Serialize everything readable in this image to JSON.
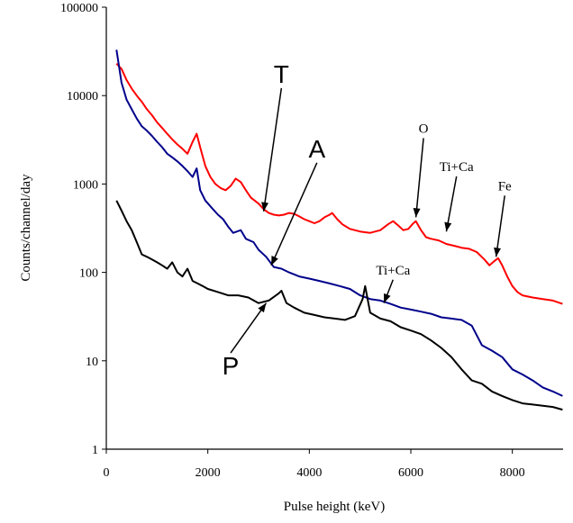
{
  "chart_data": {
    "type": "line",
    "title": "",
    "xlabel": "Pulse height (keV)",
    "ylabel": "Counts/channel/day",
    "xlim": [
      0,
      9000
    ],
    "ylim": [
      1,
      100000
    ],
    "yscale": "log",
    "grid": false,
    "legend": "none",
    "x_ticks": [
      "0",
      "2000",
      "4000",
      "6000",
      "8000"
    ],
    "x_tick_values": [
      0,
      2000,
      4000,
      6000,
      8000
    ],
    "y_ticks": [
      "1",
      "10",
      "100",
      "1000",
      "10000",
      "100000"
    ],
    "y_tick_values": [
      1,
      10,
      100,
      1000,
      10000,
      100000
    ],
    "series": [
      {
        "color": "#ff0000",
        "points": [
          [
            200,
            23000
          ],
          [
            300,
            20000
          ],
          [
            400,
            15000
          ],
          [
            500,
            12000
          ],
          [
            600,
            10000
          ],
          [
            700,
            8500
          ],
          [
            800,
            7000
          ],
          [
            900,
            6000
          ],
          [
            1000,
            5000
          ],
          [
            1100,
            4300
          ],
          [
            1200,
            3700
          ],
          [
            1300,
            3200
          ],
          [
            1400,
            2800
          ],
          [
            1500,
            2500
          ],
          [
            1600,
            2200
          ],
          [
            1700,
            3000
          ],
          [
            1780,
            3700
          ],
          [
            1850,
            2600
          ],
          [
            1950,
            1600
          ],
          [
            2050,
            1200
          ],
          [
            2150,
            1000
          ],
          [
            2250,
            900
          ],
          [
            2350,
            850
          ],
          [
            2450,
            950
          ],
          [
            2550,
            1150
          ],
          [
            2650,
            1050
          ],
          [
            2750,
            850
          ],
          [
            2850,
            700
          ],
          [
            3000,
            600
          ],
          [
            3100,
            520
          ],
          [
            3200,
            470
          ],
          [
            3300,
            450
          ],
          [
            3400,
            440
          ],
          [
            3500,
            450
          ],
          [
            3600,
            470
          ],
          [
            3700,
            460
          ],
          [
            3800,
            430
          ],
          [
            3900,
            400
          ],
          [
            4000,
            380
          ],
          [
            4100,
            360
          ],
          [
            4200,
            380
          ],
          [
            4300,
            420
          ],
          [
            4400,
            450
          ],
          [
            4450,
            470
          ],
          [
            4550,
            400
          ],
          [
            4650,
            350
          ],
          [
            4800,
            310
          ],
          [
            5000,
            290
          ],
          [
            5200,
            280
          ],
          [
            5400,
            300
          ],
          [
            5550,
            350
          ],
          [
            5650,
            380
          ],
          [
            5750,
            340
          ],
          [
            5850,
            300
          ],
          [
            5950,
            310
          ],
          [
            6050,
            360
          ],
          [
            6100,
            380
          ],
          [
            6200,
            300
          ],
          [
            6300,
            250
          ],
          [
            6400,
            240
          ],
          [
            6550,
            230
          ],
          [
            6700,
            210
          ],
          [
            6850,
            200
          ],
          [
            7000,
            190
          ],
          [
            7150,
            185
          ],
          [
            7300,
            170
          ],
          [
            7450,
            140
          ],
          [
            7550,
            120
          ],
          [
            7650,
            135
          ],
          [
            7720,
            145
          ],
          [
            7800,
            120
          ],
          [
            7900,
            90
          ],
          [
            8000,
            70
          ],
          [
            8100,
            60
          ],
          [
            8200,
            55
          ],
          [
            8400,
            52
          ],
          [
            8600,
            50
          ],
          [
            8800,
            48
          ],
          [
            8990,
            44
          ]
        ]
      },
      {
        "color": "#00008b",
        "points": [
          [
            200,
            33000
          ],
          [
            300,
            14000
          ],
          [
            400,
            9000
          ],
          [
            500,
            7000
          ],
          [
            600,
            5500
          ],
          [
            700,
            4500
          ],
          [
            800,
            4000
          ],
          [
            900,
            3500
          ],
          [
            1000,
            3000
          ],
          [
            1100,
            2600
          ],
          [
            1200,
            2200
          ],
          [
            1300,
            2000
          ],
          [
            1400,
            1800
          ],
          [
            1500,
            1600
          ],
          [
            1600,
            1400
          ],
          [
            1700,
            1200
          ],
          [
            1780,
            1500
          ],
          [
            1850,
            850
          ],
          [
            1950,
            650
          ],
          [
            2100,
            520
          ],
          [
            2200,
            450
          ],
          [
            2300,
            400
          ],
          [
            2400,
            330
          ],
          [
            2500,
            280
          ],
          [
            2650,
            300
          ],
          [
            2750,
            240
          ],
          [
            2900,
            220
          ],
          [
            3000,
            180
          ],
          [
            3150,
            150
          ],
          [
            3300,
            115
          ],
          [
            3450,
            110
          ],
          [
            3600,
            100
          ],
          [
            3800,
            90
          ],
          [
            4000,
            85
          ],
          [
            4200,
            80
          ],
          [
            4400,
            75
          ],
          [
            4600,
            70
          ],
          [
            4800,
            65
          ],
          [
            5000,
            55
          ],
          [
            5200,
            50
          ],
          [
            5400,
            48
          ],
          [
            5600,
            44
          ],
          [
            5800,
            40
          ],
          [
            6000,
            38
          ],
          [
            6200,
            36
          ],
          [
            6400,
            34
          ],
          [
            6600,
            31
          ],
          [
            6800,
            30
          ],
          [
            7000,
            29
          ],
          [
            7200,
            25
          ],
          [
            7400,
            15
          ],
          [
            7600,
            13
          ],
          [
            7800,
            11
          ],
          [
            8000,
            8
          ],
          [
            8200,
            7
          ],
          [
            8400,
            6
          ],
          [
            8600,
            5
          ],
          [
            8800,
            4.5
          ],
          [
            8990,
            4
          ]
        ]
      },
      {
        "color": "#000000",
        "points": [
          [
            200,
            650
          ],
          [
            300,
            500
          ],
          [
            400,
            380
          ],
          [
            500,
            300
          ],
          [
            600,
            220
          ],
          [
            700,
            160
          ],
          [
            800,
            150
          ],
          [
            900,
            140
          ],
          [
            1000,
            130
          ],
          [
            1100,
            120
          ],
          [
            1200,
            110
          ],
          [
            1300,
            130
          ],
          [
            1400,
            100
          ],
          [
            1500,
            90
          ],
          [
            1600,
            110
          ],
          [
            1700,
            80
          ],
          [
            1800,
            75
          ],
          [
            1900,
            70
          ],
          [
            2000,
            65
          ],
          [
            2200,
            60
          ],
          [
            2400,
            55
          ],
          [
            2600,
            55
          ],
          [
            2800,
            52
          ],
          [
            3000,
            45
          ],
          [
            3200,
            48
          ],
          [
            3400,
            58
          ],
          [
            3450,
            62
          ],
          [
            3550,
            45
          ],
          [
            3700,
            40
          ],
          [
            3900,
            35
          ],
          [
            4100,
            33
          ],
          [
            4300,
            31
          ],
          [
            4500,
            30
          ],
          [
            4700,
            29
          ],
          [
            4900,
            32
          ],
          [
            5050,
            50
          ],
          [
            5100,
            70
          ],
          [
            5200,
            35
          ],
          [
            5400,
            30
          ],
          [
            5600,
            28
          ],
          [
            5800,
            24
          ],
          [
            6000,
            22
          ],
          [
            6200,
            20
          ],
          [
            6400,
            17
          ],
          [
            6600,
            14
          ],
          [
            6800,
            11
          ],
          [
            7000,
            8
          ],
          [
            7200,
            6
          ],
          [
            7400,
            5.5
          ],
          [
            7600,
            4.5
          ],
          [
            7800,
            4
          ],
          [
            8000,
            3.6
          ],
          [
            8200,
            3.3
          ],
          [
            8400,
            3.2
          ],
          [
            8600,
            3.1
          ],
          [
            8800,
            3
          ],
          [
            8990,
            2.8
          ]
        ]
      }
    ],
    "annotations": [
      {
        "text": "T",
        "style": "big",
        "x": 3450,
        "y": 14000,
        "arrow_to": [
          3100,
          490
        ]
      },
      {
        "text": "A",
        "style": "big",
        "x": 4150,
        "y": 2000,
        "arrow_to": [
          3250,
          120
        ]
      },
      {
        "text": "P",
        "style": "big",
        "x": 2450,
        "y": 7,
        "arrow_to": [
          3150,
          45
        ]
      },
      {
        "text": "O",
        "style": "small",
        "x": 6250,
        "y": 3800,
        "arrow_to": [
          6100,
          420
        ]
      },
      {
        "text": "Ti+Ca",
        "style": "small",
        "x": 6900,
        "y": 1400,
        "arrow_to": [
          6700,
          290
        ]
      },
      {
        "text": "Fe",
        "style": "small",
        "x": 7850,
        "y": 850,
        "arrow_to": [
          7680,
          150
        ]
      },
      {
        "text": "Ti+Ca",
        "style": "small",
        "x": 5650,
        "y": 95,
        "arrow_to": [
          5470,
          45
        ]
      }
    ]
  }
}
